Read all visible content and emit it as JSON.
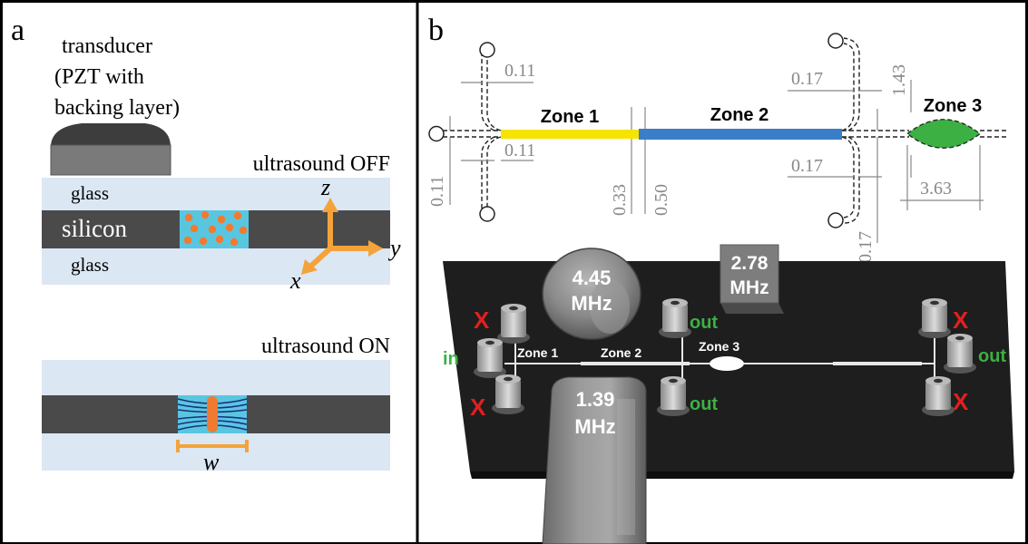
{
  "panel_a": {
    "label": "a",
    "transducer_label": [
      "transducer",
      "(PZT with",
      "backing layer)"
    ],
    "state_off": "ultrasound OFF",
    "state_on": "ultrasound ON",
    "layer_top": "glass",
    "layer_mid": "silicon",
    "layer_bottom": "glass",
    "axis_x": "x",
    "axis_y": "y",
    "axis_z": "z",
    "width_label": "w"
  },
  "panel_b": {
    "label": "b",
    "zones": [
      "Zone 1",
      "Zone 2",
      "Zone 3"
    ],
    "dims": {
      "d_011_top": "0.11",
      "d_011_mid": "0.11",
      "d_011_left": "0.11",
      "d_033": "0.33",
      "d_050": "0.50",
      "d_017_top": "0.17",
      "d_017_mid": "0.17",
      "d_017_vert": "0.17",
      "d_143": "1.43",
      "d_363": "3.63"
    },
    "transducers": [
      {
        "freq": "4.45",
        "unit": "MHz"
      },
      {
        "freq": "2.78",
        "unit": "MHz"
      },
      {
        "freq": "1.39",
        "unit": "MHz"
      }
    ],
    "port_in": "in",
    "port_out": "out",
    "port_blocked": "X",
    "chip_zones": [
      "Zone 1",
      "Zone 2",
      "Zone 3"
    ]
  },
  "colors": {
    "zone1": "#f5e400",
    "zone2": "#3a7ec8",
    "zone3": "#3cb043",
    "silicon": "#4a4a4a",
    "glass": "#dbe7f3",
    "channel": "#59c6e0",
    "particle": "#f07a30",
    "arrow": "#f4a33a",
    "dim_text": "#888888",
    "chip": "#1e1e1e",
    "out_green": "#3cb043",
    "x_red": "#e02020"
  }
}
